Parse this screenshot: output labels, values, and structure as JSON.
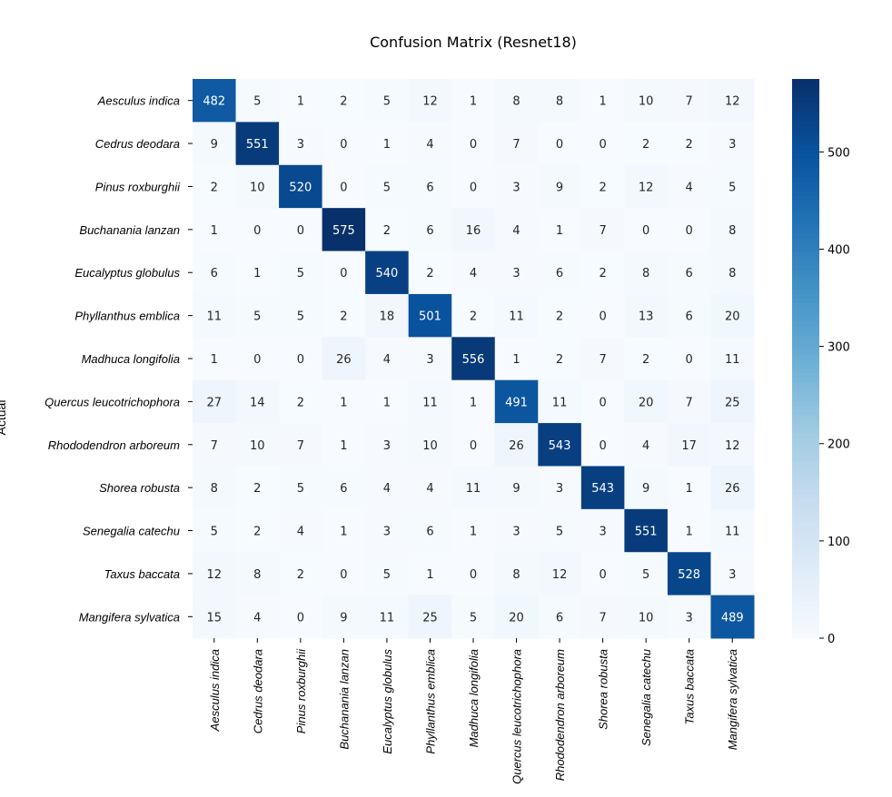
{
  "chart_data": {
    "type": "heatmap",
    "title": "Confusion Matrix (Resnet18)",
    "ylabel": "Actual",
    "xlabel": "",
    "colormap": "Blues",
    "color_range": [
      0,
      575
    ],
    "colorbar_ticks": [
      0,
      100,
      200,
      300,
      400,
      500
    ],
    "row_labels": [
      "Aesculus indica",
      "Cedrus deodara",
      "Pinus roxburghii",
      "Buchanania lanzan",
      "Eucalyptus globulus",
      "Phyllanthus emblica",
      "Madhuca longifolia",
      "Quercus leucotrichophora",
      "Rhododendron arboreum",
      "Shorea robusta",
      "Senegalia catechu",
      "Taxus baccata",
      "Mangifera sylvatica"
    ],
    "col_labels": [
      "Aesculus indica",
      "Cedrus deodara",
      "Pinus roxburghii",
      "Buchanania lanzan",
      "Eucalyptus globulus",
      "Phyllanthus emblica",
      "Madhuca longifolia",
      "Quercus leucotrichophora",
      "Rhododendron arboreum",
      "Shorea robusta",
      "Senegalia catechu",
      "Taxus baccata",
      "Mangifera sylvatica"
    ],
    "values": [
      [
        482,
        5,
        1,
        2,
        5,
        12,
        1,
        8,
        8,
        1,
        10,
        7,
        12
      ],
      [
        9,
        551,
        3,
        0,
        1,
        4,
        0,
        7,
        0,
        0,
        2,
        2,
        3
      ],
      [
        2,
        10,
        520,
        0,
        5,
        6,
        0,
        3,
        9,
        2,
        12,
        4,
        5
      ],
      [
        1,
        0,
        0,
        575,
        2,
        6,
        16,
        4,
        1,
        7,
        0,
        0,
        8
      ],
      [
        6,
        1,
        5,
        0,
        540,
        2,
        4,
        3,
        6,
        2,
        8,
        6,
        8
      ],
      [
        11,
        5,
        5,
        2,
        18,
        501,
        2,
        11,
        2,
        0,
        13,
        6,
        20
      ],
      [
        1,
        0,
        0,
        26,
        4,
        3,
        556,
        1,
        2,
        7,
        2,
        0,
        11
      ],
      [
        27,
        14,
        2,
        1,
        1,
        11,
        1,
        491,
        11,
        0,
        20,
        7,
        25
      ],
      [
        7,
        10,
        7,
        1,
        3,
        10,
        0,
        26,
        543,
        0,
        4,
        17,
        12
      ],
      [
        8,
        2,
        5,
        6,
        4,
        4,
        11,
        9,
        3,
        543,
        9,
        1,
        26
      ],
      [
        5,
        2,
        4,
        1,
        3,
        6,
        1,
        3,
        5,
        3,
        551,
        1,
        11
      ],
      [
        12,
        8,
        2,
        0,
        5,
        1,
        0,
        8,
        12,
        0,
        5,
        528,
        3
      ],
      [
        15,
        4,
        0,
        9,
        11,
        25,
        5,
        20,
        6,
        7,
        10,
        3,
        489
      ]
    ]
  }
}
